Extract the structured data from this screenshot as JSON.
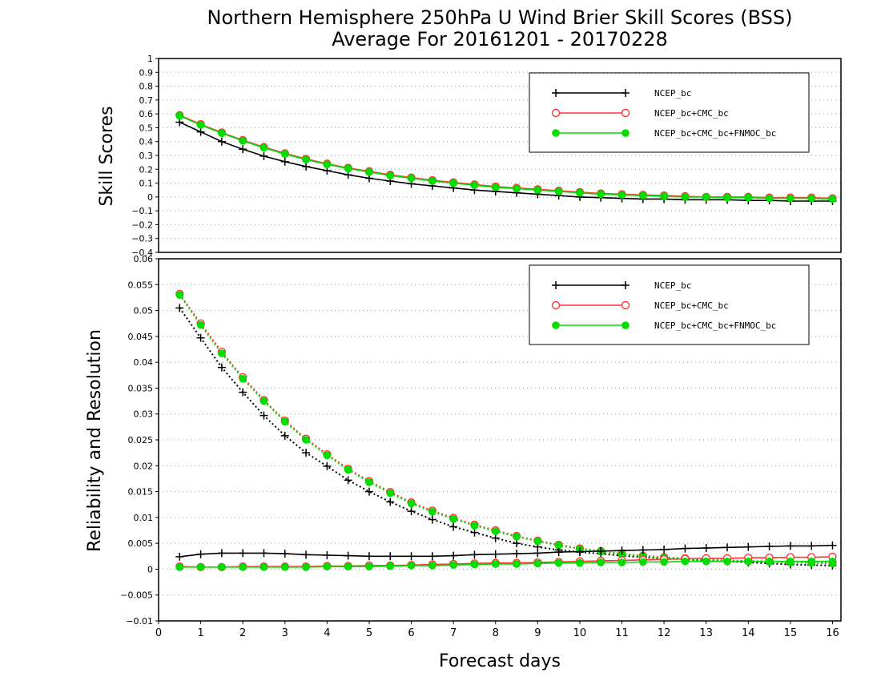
{
  "chart_data": [
    {
      "type": "line",
      "title_line1": "Northern Hemisphere 250hPa U Wind Brier Skill Scores (BSS)",
      "title_line2": "Average For 20161201 - 20170228",
      "xlabel": "",
      "ylabel": "Skill Scores",
      "xlim": [
        0,
        16.2
      ],
      "ylim": [
        -0.4,
        1
      ],
      "ytick_labels": [
        "−0.4",
        "−0.3",
        "−0.2",
        "−0.1",
        "0",
        "0.1",
        "0.2",
        "0.3",
        "0.4",
        "0.5",
        "0.6",
        "0.7",
        "0.8",
        "0.9",
        "1"
      ],
      "grid": true,
      "legend_position": "top-right",
      "x": [
        0.5,
        1,
        1.5,
        2,
        2.5,
        3,
        3.5,
        4,
        4.5,
        5,
        5.5,
        6,
        6.5,
        7,
        7.5,
        8,
        8.5,
        9,
        9.5,
        10,
        10.5,
        11,
        11.5,
        12,
        12.5,
        13,
        13.5,
        14,
        14.5,
        15,
        15.5,
        16
      ],
      "series": [
        {
          "name": "NCEP_bc",
          "color": "#000000",
          "marker": "plus",
          "dash": "solid",
          "values": [
            0.54,
            0.47,
            0.4,
            0.345,
            0.295,
            0.255,
            0.22,
            0.19,
            0.16,
            0.135,
            0.115,
            0.095,
            0.08,
            0.065,
            0.05,
            0.04,
            0.03,
            0.02,
            0.01,
            0.0,
            -0.005,
            -0.01,
            -0.015,
            -0.015,
            -0.02,
            -0.02,
            -0.02,
            -0.025,
            -0.025,
            -0.03,
            -0.03,
            -0.03
          ]
        },
        {
          "name": "NCEP_bc+CMC_bc",
          "color": "#ff3333",
          "marker": "circle-open",
          "dash": "solid",
          "values": [
            0.59,
            0.525,
            0.465,
            0.41,
            0.36,
            0.315,
            0.275,
            0.24,
            0.21,
            0.185,
            0.16,
            0.14,
            0.12,
            0.105,
            0.09,
            0.075,
            0.065,
            0.055,
            0.045,
            0.035,
            0.025,
            0.02,
            0.015,
            0.01,
            0.005,
            0.0,
            0.0,
            0.0,
            -0.005,
            -0.005,
            -0.005,
            -0.01
          ]
        },
        {
          "name": "NCEP_bc+CMC_bc+FNMOC_bc",
          "color": "#00dd00",
          "marker": "dot",
          "dash": "solid",
          "values": [
            0.585,
            0.52,
            0.46,
            0.405,
            0.355,
            0.31,
            0.27,
            0.235,
            0.205,
            0.18,
            0.155,
            0.135,
            0.115,
            0.1,
            0.085,
            0.07,
            0.06,
            0.05,
            0.04,
            0.03,
            0.02,
            0.015,
            0.01,
            0.005,
            0.0,
            0.0,
            -0.005,
            -0.005,
            -0.01,
            -0.01,
            -0.01,
            -0.015
          ]
        }
      ]
    },
    {
      "type": "line",
      "xlabel": "Forecast days",
      "ylabel": "Reliability and Resolution",
      "xlim": [
        0,
        16.2
      ],
      "ylim": [
        -0.01,
        0.06
      ],
      "xtick_labels": [
        "0",
        "1",
        "2",
        "3",
        "4",
        "5",
        "6",
        "7",
        "8",
        "9",
        "10",
        "11",
        "12",
        "13",
        "14",
        "15",
        "16"
      ],
      "ytick_labels": [
        "−0.01",
        "−0.005",
        "0",
        "0.005",
        "0.01",
        "0.015",
        "0.02",
        "0.025",
        "0.03",
        "0.035",
        "0.04",
        "0.045",
        "0.05",
        "0.055",
        "0.06"
      ],
      "grid": true,
      "legend_position": "top-right",
      "x": [
        0.5,
        1,
        1.5,
        2,
        2.5,
        3,
        3.5,
        4,
        4.5,
        5,
        5.5,
        6,
        6.5,
        7,
        7.5,
        8,
        8.5,
        9,
        9.5,
        10,
        10.5,
        11,
        11.5,
        12,
        12.5,
        13,
        13.5,
        14,
        14.5,
        15,
        15.5,
        16
      ],
      "series": [
        {
          "name": "NCEP_bc",
          "color": "#000000",
          "marker": "plus",
          "dash": "dotted",
          "legend": false,
          "values": [
            0.0505,
            0.0447,
            0.039,
            0.0342,
            0.0297,
            0.0258,
            0.0225,
            0.0199,
            0.0172,
            0.015,
            0.013,
            0.0112,
            0.0096,
            0.0082,
            0.0071,
            0.006,
            0.005,
            0.0043,
            0.0037,
            0.0033,
            0.003,
            0.0026,
            0.0023,
            0.0021,
            0.0019,
            0.0017,
            0.0015,
            0.0013,
            0.0011,
            0.0009,
            0.0008,
            0.0007
          ]
        },
        {
          "name": "NCEP_bc+CMC_bc",
          "color": "#ff3333",
          "marker": "circle-open",
          "dash": "dotted",
          "legend": false,
          "values": [
            0.0532,
            0.0475,
            0.042,
            0.0371,
            0.0327,
            0.0287,
            0.0252,
            0.0222,
            0.0194,
            0.017,
            0.0149,
            0.0129,
            0.0113,
            0.0099,
            0.0086,
            0.0075,
            0.0064,
            0.0055,
            0.0047,
            0.004,
            0.0035,
            0.003,
            0.0026,
            0.0023,
            0.0021,
            0.0019,
            0.0017,
            0.0016,
            0.0015,
            0.0014,
            0.0013,
            0.0013
          ]
        },
        {
          "name": "NCEP_bc+CMC_bc+FNMOC_bc",
          "color": "#00dd00",
          "marker": "dot",
          "dash": "dotted",
          "legend": false,
          "values": [
            0.053,
            0.0472,
            0.0417,
            0.0368,
            0.0325,
            0.0285,
            0.025,
            0.022,
            0.0192,
            0.0168,
            0.0147,
            0.0127,
            0.0111,
            0.0097,
            0.0084,
            0.0073,
            0.0063,
            0.0054,
            0.0046,
            0.0039,
            0.0034,
            0.0029,
            0.0025,
            0.0022,
            0.002,
            0.0018,
            0.0016,
            0.0015,
            0.0014,
            0.0013,
            0.0012,
            0.0011
          ]
        },
        {
          "name": "NCEP_bc",
          "color": "#000000",
          "marker": "plus",
          "dash": "solid",
          "legend": true,
          "values": [
            0.0024,
            0.0029,
            0.0031,
            0.0031,
            0.0031,
            0.003,
            0.0028,
            0.0027,
            0.0026,
            0.0025,
            0.0025,
            0.0025,
            0.0025,
            0.0026,
            0.0028,
            0.0029,
            0.003,
            0.0031,
            0.0033,
            0.0034,
            0.0035,
            0.0036,
            0.0037,
            0.0038,
            0.004,
            0.0041,
            0.0042,
            0.0043,
            0.0044,
            0.0045,
            0.0045,
            0.0046
          ]
        },
        {
          "name": "NCEP_bc+CMC_bc",
          "color": "#ff3333",
          "marker": "circle-open",
          "dash": "solid",
          "legend": true,
          "values": [
            0.0005,
            0.0004,
            0.0004,
            0.0005,
            0.0005,
            0.0005,
            0.0005,
            0.0006,
            0.0006,
            0.0007,
            0.0007,
            0.0008,
            0.0009,
            0.001,
            0.0011,
            0.0012,
            0.0012,
            0.0013,
            0.0014,
            0.0015,
            0.0016,
            0.0017,
            0.0018,
            0.0019,
            0.002,
            0.0021,
            0.0021,
            0.0022,
            0.0022,
            0.0023,
            0.0023,
            0.0024
          ]
        },
        {
          "name": "NCEP_bc+CMC_bc+FNMOC_bc",
          "color": "#00dd00",
          "marker": "dot",
          "dash": "solid",
          "legend": true,
          "values": [
            0.0004,
            0.0004,
            0.0004,
            0.0004,
            0.0004,
            0.0004,
            0.0004,
            0.0005,
            0.0005,
            0.0005,
            0.0006,
            0.0007,
            0.0007,
            0.0008,
            0.0009,
            0.001,
            0.001,
            0.0011,
            0.0012,
            0.0012,
            0.0013,
            0.0013,
            0.0014,
            0.0014,
            0.0015,
            0.0015,
            0.0015,
            0.0015,
            0.0015,
            0.0015,
            0.0015,
            0.0015
          ]
        }
      ]
    }
  ]
}
